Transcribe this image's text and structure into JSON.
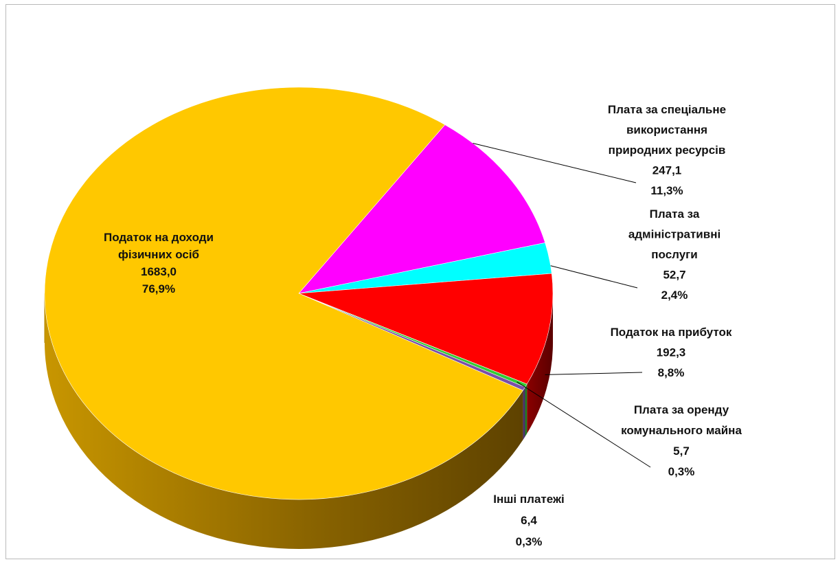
{
  "chart_data": {
    "type": "pie",
    "style": "3d",
    "legend": "none",
    "slices": [
      {
        "name": "Податок на доходи фізичних осіб",
        "value_text": "1683,0",
        "percent_text": "76,9%",
        "value": 1683.0,
        "percent": 76.9,
        "color": "#ffc800"
      },
      {
        "name": "Плата за спеціальне використання природних ресурсів",
        "value_text": "247,1",
        "percent_text": "11,3%",
        "value": 247.1,
        "percent": 11.3,
        "color": "#ff00ff"
      },
      {
        "name": "Плата за адміністративні послуги",
        "value_text": "52,7",
        "percent_text": "2,4%",
        "value": 52.7,
        "percent": 2.4,
        "color": "#00ffff"
      },
      {
        "name": "Податок на прибуток",
        "value_text": "192,3",
        "percent_text": "8,8%",
        "value": 192.3,
        "percent": 8.8,
        "color": "#ff0000"
      },
      {
        "name": "Плата за оренду комунального майна",
        "value_text": "5,7",
        "percent_text": "0,3%",
        "value": 5.7,
        "percent": 0.3,
        "color": "#33cc33"
      },
      {
        "name": "Інші платежі",
        "value_text": "6,4",
        "percent_text": "0,3%",
        "value": 6.4,
        "percent": 0.3,
        "color": "#7b4fa8"
      }
    ]
  }
}
